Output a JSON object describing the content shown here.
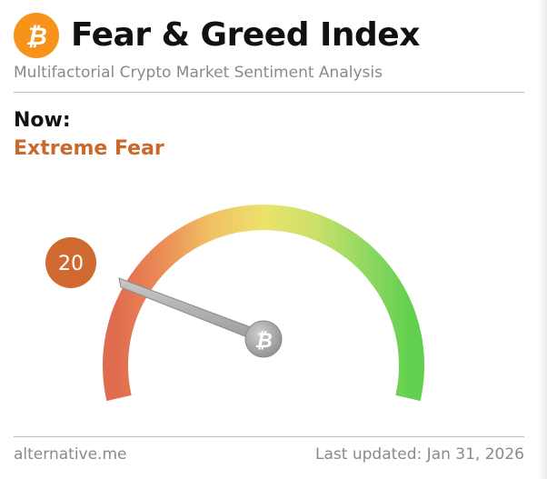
{
  "header": {
    "title": "Fear & Greed Index",
    "subtitle": "Multifactorial Crypto Market Sentiment Analysis",
    "logo_icon": "bitcoin-icon"
  },
  "status": {
    "now_label": "Now:",
    "classification": "Extreme Fear",
    "classification_color": "#c8692d"
  },
  "gauge": {
    "value": "20",
    "min": 0,
    "max": 100,
    "badge_color": "#d06a30",
    "hub_icon": "bitcoin-icon"
  },
  "footer": {
    "source": "alternative.me",
    "last_updated": "Last updated: Jan 31, 2026"
  }
}
